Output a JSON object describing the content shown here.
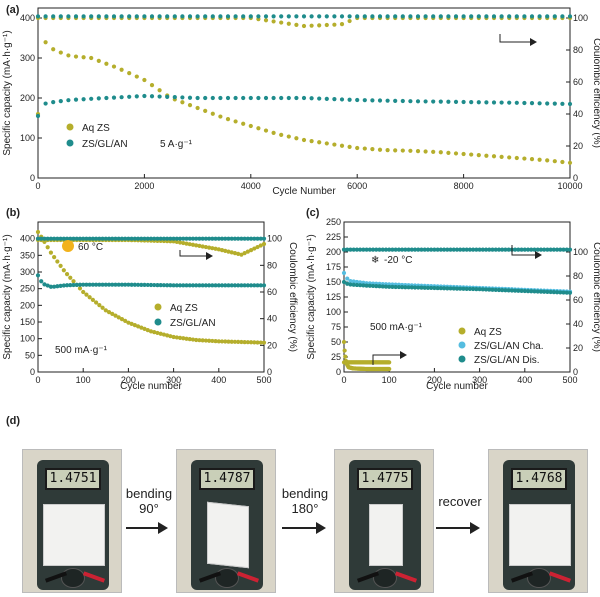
{
  "chart_data": [
    {
      "panel": "(a)",
      "type": "scatter",
      "xlabel": "Cycle Number",
      "ylabel": "Specific capacity (mA·h·g⁻¹)",
      "y2label": "Coulombic efficiency (%)",
      "xlim": [
        0,
        10000
      ],
      "ylim": [
        0,
        425
      ],
      "y2lim": [
        0,
        106.25
      ],
      "xticks": [
        "0",
        "2000",
        "4000",
        "6000",
        "8000",
        "10000"
      ],
      "yticks": [
        "0",
        "100",
        "200",
        "300",
        "400"
      ],
      "y2ticks": [
        "0",
        "20",
        "40",
        "60",
        "80",
        "100"
      ],
      "legend": [
        "Aq ZS",
        "ZS/GL/AN"
      ],
      "annotation": "5 A·g⁻¹",
      "colors": {
        "aq": "#b5ae2c",
        "zs": "#1f8c8c"
      },
      "series": [
        {
          "name": "Aq ZS capacity",
          "axis": "left",
          "x": [
            0,
            50,
            150,
            300,
            600,
            1000,
            1500,
            2000,
            2500,
            3000,
            3500,
            4000,
            4500,
            5000,
            5500,
            6000,
            6500,
            7000,
            7500,
            8000,
            8500,
            9000,
            9500,
            10000
          ],
          "values": [
            160,
            330,
            340,
            320,
            305,
            300,
            275,
            245,
            200,
            175,
            150,
            130,
            110,
            95,
            85,
            75,
            70,
            68,
            65,
            60,
            55,
            50,
            45,
            38
          ]
        },
        {
          "name": "ZS/GL/AN capacity",
          "axis": "left",
          "x": [
            0,
            100,
            300,
            600,
            1000,
            2000,
            3000,
            4000,
            5000,
            6000,
            7000,
            8000,
            9000,
            10000
          ],
          "values": [
            155,
            185,
            190,
            195,
            198,
            205,
            200,
            200,
            200,
            195,
            192,
            190,
            188,
            185
          ]
        },
        {
          "name": "Aq ZS efficiency",
          "axis": "right",
          "x": [
            0,
            1000,
            2000,
            4000,
            5000,
            5700,
            6000,
            8000,
            10000
          ],
          "values": [
            100,
            100,
            100,
            100,
            95,
            96,
            100,
            100,
            100
          ]
        },
        {
          "name": "ZS/GL/AN efficiency",
          "axis": "right",
          "x": [
            0,
            2000,
            4000,
            6000,
            8000,
            10000
          ],
          "values": [
            101,
            101,
            101,
            101,
            101,
            101
          ]
        }
      ]
    },
    {
      "panel": "(b)",
      "type": "scatter",
      "xlabel": "Cycle number",
      "ylabel": "Specific capacity (mA·h·g⁻¹)",
      "y2label": "Coulombic efficiency (%)",
      "xlim": [
        0,
        500
      ],
      "ylim": [
        0,
        450
      ],
      "y2lim": [
        0,
        112.5
      ],
      "xticks": [
        "0",
        "100",
        "200",
        "300",
        "400",
        "500"
      ],
      "yticks": [
        "0",
        "50",
        "100",
        "150",
        "200",
        "250",
        "300",
        "350",
        "400"
      ],
      "y2ticks": [
        "0",
        "20",
        "40",
        "60",
        "80",
        "100"
      ],
      "legend": [
        "Aq ZS",
        "ZS/GL/AN"
      ],
      "annotations": [
        "60 °C",
        "500 mA·g⁻¹"
      ],
      "series": [
        {
          "name": "Aq ZS capacity",
          "axis": "left",
          "x": [
            0,
            10,
            30,
            60,
            100,
            150,
            200,
            250,
            300,
            350,
            400,
            450,
            500
          ],
          "values": [
            420,
            400,
            355,
            300,
            240,
            185,
            148,
            122,
            105,
            96,
            92,
            90,
            88
          ]
        },
        {
          "name": "ZS/GL/AN capacity",
          "axis": "left",
          "x": [
            0,
            10,
            30,
            60,
            100,
            200,
            300,
            400,
            500
          ],
          "values": [
            290,
            265,
            255,
            260,
            262,
            262,
            260,
            260,
            260
          ]
        },
        {
          "name": "Aq ZS efficiency",
          "axis": "right",
          "x": [
            0,
            100,
            200,
            300,
            350,
            400,
            450,
            500
          ],
          "values": [
            99,
            99,
            99,
            98,
            95,
            92,
            88,
            96
          ]
        },
        {
          "name": "ZS/GL/AN efficiency",
          "axis": "right",
          "x": [
            0,
            100,
            200,
            300,
            400,
            500
          ],
          "values": [
            100,
            100,
            100,
            100,
            100,
            100
          ]
        }
      ]
    },
    {
      "panel": "(c)",
      "type": "scatter",
      "xlabel": "Cycle number",
      "ylabel": "Specific capacity (mA·h·g⁻¹)",
      "y2label": "Coulombic efficiency (%)",
      "xlim": [
        0,
        500
      ],
      "ylim": [
        0,
        250
      ],
      "y2lim": [
        0,
        125
      ],
      "xticks": [
        "0",
        "100",
        "200",
        "300",
        "400",
        "500"
      ],
      "yticks": [
        "0",
        "25",
        "50",
        "75",
        "100",
        "125",
        "150",
        "175",
        "200",
        "225",
        "250"
      ],
      "y2ticks": [
        "0",
        "20",
        "40",
        "60",
        "80",
        "100"
      ],
      "legend": [
        "Aq ZS",
        "ZS/GL/AN Cha.",
        "ZS/GL/AN Dis."
      ],
      "annotations": [
        "-20 °C",
        "500 mA·g⁻¹"
      ],
      "series": [
        {
          "name": "Aq ZS capacity",
          "axis": "left",
          "x": [
            0,
            2,
            5,
            10,
            20,
            50,
            100
          ],
          "values": [
            50,
            30,
            15,
            8,
            6,
            5,
            5
          ]
        },
        {
          "name": "ZS/GL/AN Cha.",
          "axis": "left",
          "x": [
            0,
            10,
            50,
            100,
            200,
            300,
            400,
            500
          ],
          "values": [
            165,
            152,
            148,
            146,
            143,
            140,
            137,
            134
          ]
        },
        {
          "name": "ZS/GL/AN Dis.",
          "axis": "left",
          "x": [
            0,
            10,
            50,
            100,
            200,
            300,
            400,
            500
          ],
          "values": [
            150,
            146,
            144,
            142,
            140,
            138,
            135,
            132
          ]
        },
        {
          "name": "Aq ZS efficiency",
          "axis": "right",
          "x": [
            0,
            50,
            100
          ],
          "values": [
            8,
            8,
            8
          ]
        },
        {
          "name": "ZS/GL/AN efficiency",
          "axis": "right",
          "x": [
            0,
            100,
            200,
            300,
            400,
            500
          ],
          "values": [
            102,
            102,
            102,
            102,
            102,
            102
          ]
        }
      ]
    }
  ],
  "panel_d": {
    "label": "(d)",
    "readings": [
      "1.4751",
      "1.4787",
      "1.4775",
      "1.4768"
    ],
    "steps": [
      {
        "line1": "bending",
        "line2": "90°"
      },
      {
        "line1": "bending",
        "line2": "180°"
      },
      {
        "line1": "recover",
        "line2": ""
      }
    ]
  }
}
